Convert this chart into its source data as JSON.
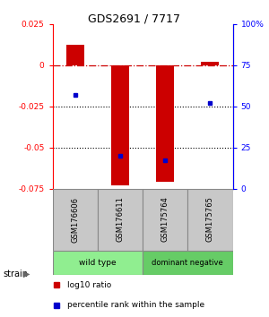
{
  "title": "GDS2691 / 7717",
  "samples": [
    "GSM176606",
    "GSM176611",
    "GSM175764",
    "GSM175765"
  ],
  "log10_ratio": [
    0.012,
    -0.073,
    -0.071,
    0.002
  ],
  "percentile_rank": [
    57,
    20,
    17,
    52
  ],
  "ylim_left": [
    -0.075,
    0.025
  ],
  "ylim_right": [
    0,
    100
  ],
  "yticks_left": [
    -0.075,
    -0.05,
    -0.025,
    0,
    0.025
  ],
  "yticks_right": [
    0,
    25,
    50,
    75,
    100
  ],
  "ytick_labels_left": [
    "-0.075",
    "-0.05",
    "-0.025",
    "0",
    "0.025"
  ],
  "ytick_labels_right": [
    "0",
    "25",
    "50",
    "75",
    "100%"
  ],
  "groups": [
    {
      "label": "wild type",
      "samples": [
        0,
        1
      ],
      "color": "#90EE90"
    },
    {
      "label": "dominant negative",
      "samples": [
        2,
        3
      ],
      "color": "#66CC66"
    }
  ],
  "bar_color": "#CC0000",
  "dot_color": "#0000CC",
  "hline_color": "#CC0000",
  "dotted_lines": [
    -0.025,
    -0.05
  ],
  "bar_width": 0.4,
  "background_color": "#ffffff",
  "plot_bg_color": "#ffffff",
  "label_red": "log10 ratio",
  "label_blue": "percentile rank within the sample",
  "strain_label": "strain",
  "header_bg": "#C8C8C8",
  "header_border": "#888888"
}
